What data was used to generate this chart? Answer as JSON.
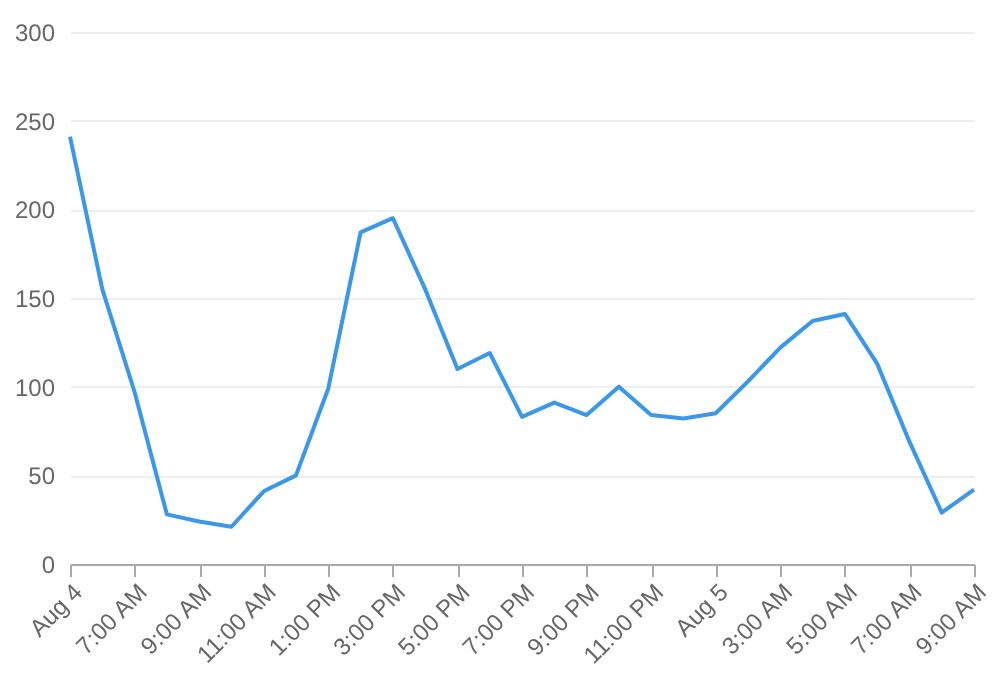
{
  "chart_data": {
    "type": "line",
    "x": [
      "--08-04T05:00",
      "--08-04T06:00",
      "--08-04T07:00",
      "--08-04T08:00",
      "--08-04T09:00",
      "--08-04T10:00",
      "--08-04T11:00",
      "--08-04T12:00",
      "--08-04T13:00",
      "--08-04T14:00",
      "--08-04T15:00",
      "--08-04T16:00",
      "--08-04T17:00",
      "--08-04T18:00",
      "--08-04T19:00",
      "--08-04T20:00",
      "--08-04T21:00",
      "--08-04T22:00",
      "--08-04T23:00",
      "--08-05T00:00",
      "--08-05T01:00",
      "--08-05T02:00",
      "--08-05T03:00",
      "--08-05T04:00",
      "--08-05T05:00",
      "--08-05T06:00",
      "--08-05T07:00",
      "--08-05T08:00",
      "--08-05T09:00"
    ],
    "series": [
      {
        "color": "#3a97ea",
        "values": [
          241,
          155,
          97,
          28,
          24,
          21,
          41,
          50,
          99,
          187,
          195,
          155,
          110,
          119,
          83,
          91,
          84,
          100,
          84,
          82,
          85,
          103,
          122,
          137,
          141,
          113,
          69,
          29,
          42
        ]
      }
    ],
    "xlim": [
      "--08-04T05:00",
      "--08-05T09:00"
    ],
    "xticks": [
      {
        "value": "--08-04T05:00",
        "label": "Aug 4"
      },
      {
        "value": "--08-04T07:00",
        "label": "7:00 AM"
      },
      {
        "value": "--08-04T09:00",
        "label": "9:00 AM"
      },
      {
        "value": "--08-04T11:00",
        "label": "11:00 AM"
      },
      {
        "value": "--08-04T13:00",
        "label": "1:00 PM"
      },
      {
        "value": "--08-04T15:00",
        "label": "3:00 PM"
      },
      {
        "value": "--08-04T17:00",
        "label": "5:00 PM"
      },
      {
        "value": "--08-04T19:00",
        "label": "7:00 PM"
      },
      {
        "value": "--08-04T21:00",
        "label": "9:00 PM"
      },
      {
        "value": "--08-04T23:00",
        "label": "11:00 PM"
      },
      {
        "value": "--08-05T01:00",
        "label": "Aug 5"
      },
      {
        "value": "--08-05T03:00",
        "label": "3:00 AM"
      },
      {
        "value": "--08-05T05:00",
        "label": "5:00 AM"
      },
      {
        "value": "--08-05T07:00",
        "label": "7:00 AM"
      },
      {
        "value": "--08-05T09:00",
        "label": "9:00 AM"
      }
    ],
    "ylim": [
      0,
      300
    ],
    "yticks": [
      0,
      50,
      100,
      150,
      200,
      250,
      300
    ],
    "grid": "y",
    "legend": false,
    "marker": "none",
    "line_style": "solid"
  }
}
